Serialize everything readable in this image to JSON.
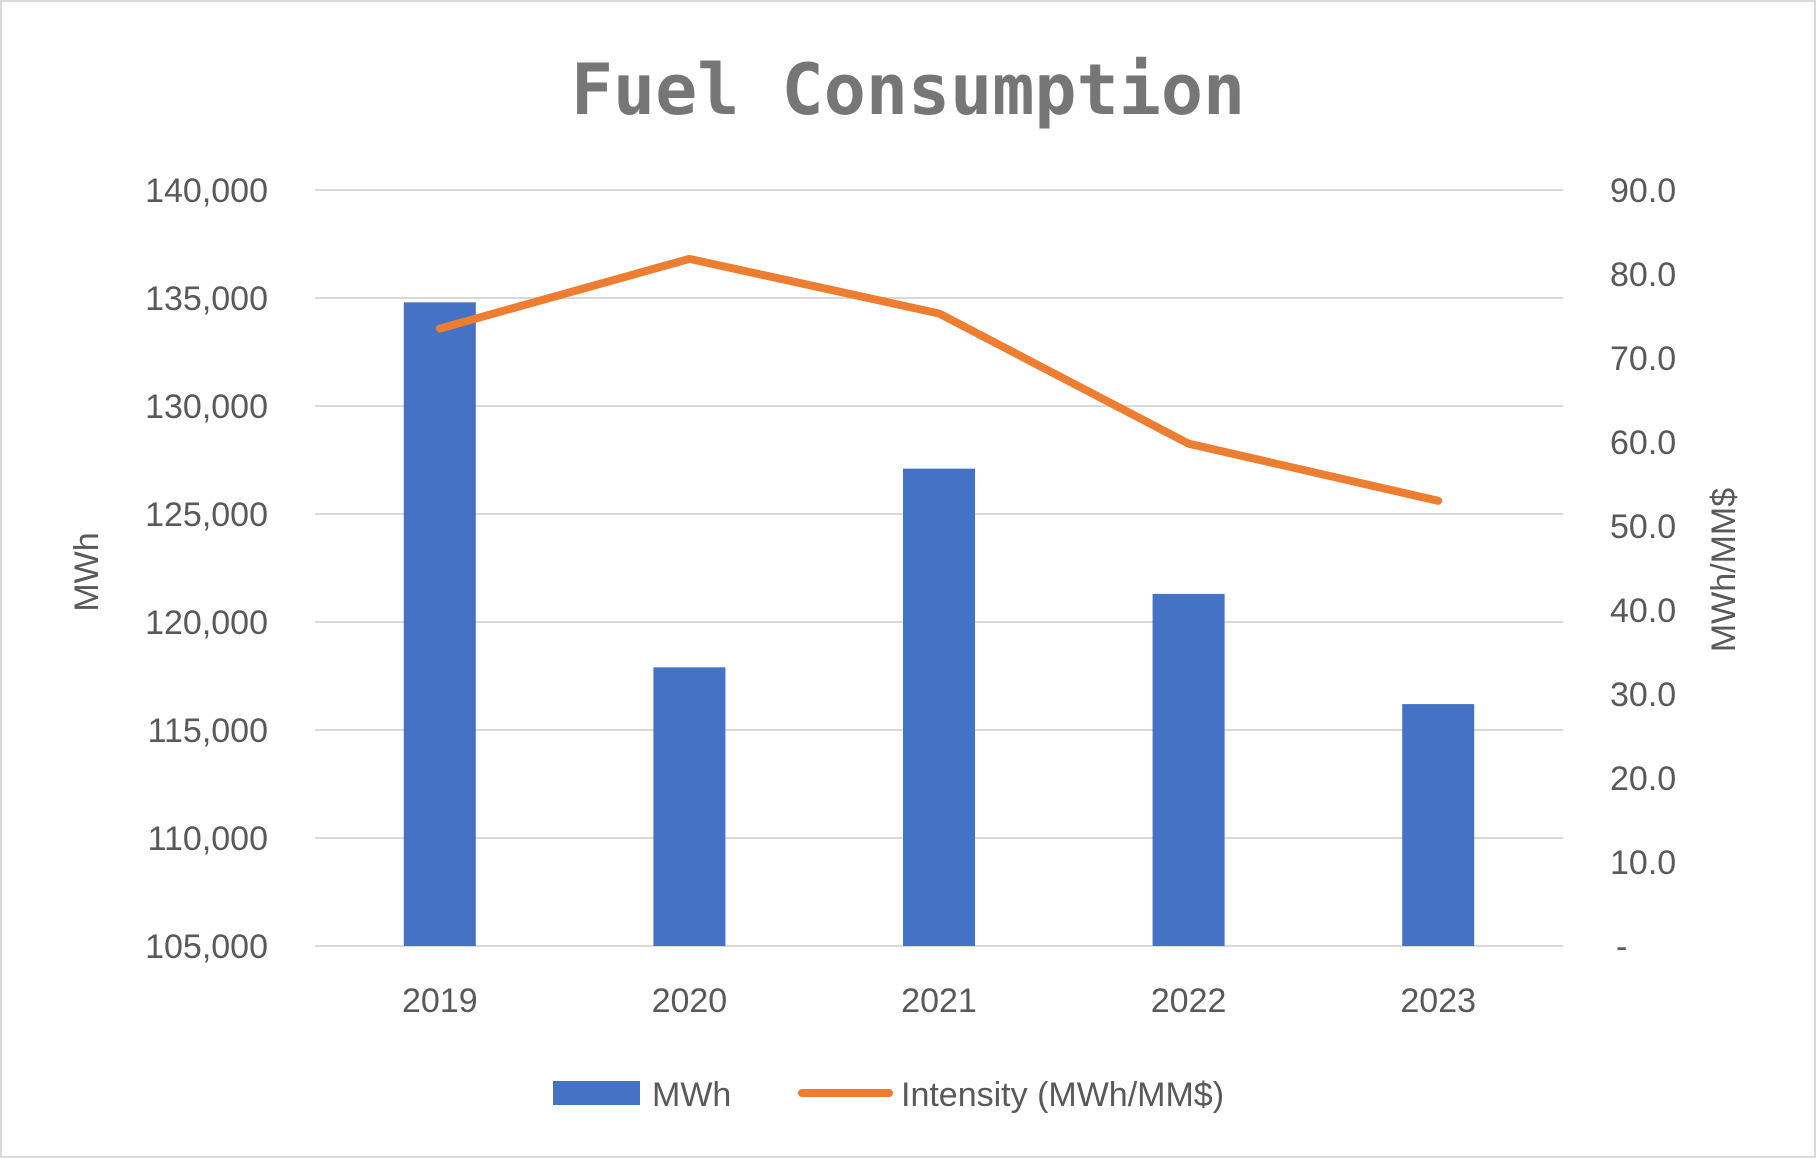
{
  "chart_data": {
    "type": "bar",
    "title": "Fuel Consumption",
    "categories": [
      "2019",
      "2020",
      "2021",
      "2022",
      "2023"
    ],
    "series": [
      {
        "name": "MWh",
        "type": "bar",
        "axis": "left",
        "color": "#4472C4",
        "values": [
          134800,
          117900,
          127100,
          121300,
          116200
        ]
      },
      {
        "name": "Intensity (MWh/MM$)",
        "type": "line",
        "axis": "right",
        "color": "#ED7D31",
        "values": [
          73.5,
          81.8,
          75.3,
          59.8,
          53.0
        ]
      }
    ],
    "ylabel": "MWh",
    "y2label": "MWh/MM$",
    "ylim": [
      105000,
      140000
    ],
    "y2lim": [
      0,
      90
    ],
    "yticks": [
      "105,000",
      "110,000",
      "115,000",
      "120,000",
      "125,000",
      "130,000",
      "135,000",
      "140,000"
    ],
    "y2ticks": [
      "-",
      "10.0",
      "20.0",
      "30.0",
      "40.0",
      "50.0",
      "60.0",
      "70.0",
      "80.0",
      "90.0"
    ],
    "grid": true,
    "legend_position": "bottom"
  }
}
